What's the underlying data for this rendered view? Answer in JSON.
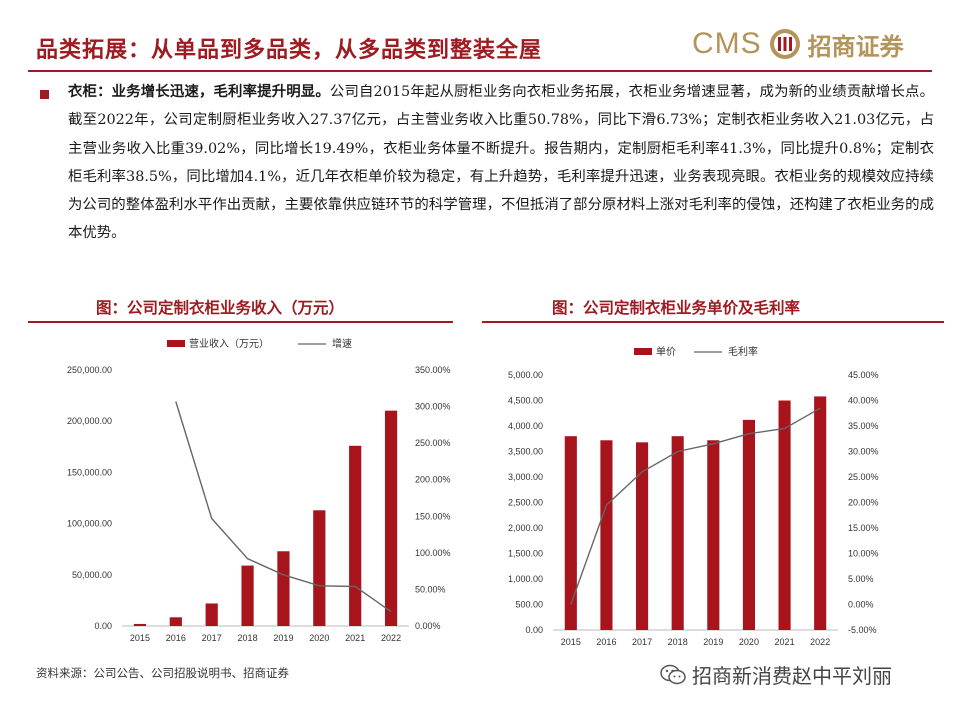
{
  "header": {
    "title": "品类拓展：从单品到多品类，从多品类到整装全屋",
    "logo_latin": "CMS",
    "logo_cn": "招商证券"
  },
  "body": {
    "lead": "衣柜：业务增长迅速，毛利率提升明显。",
    "text": "公司自2015年起从厨柜业务向衣柜业务拓展，衣柜业务增速显著，成为新的业绩贡献增长点。截至2022年，公司定制厨柜业务收入27.37亿元，占主营业务收入比重50.78%，同比下滑6.73%；定制衣柜业务收入21.03亿元，占主营业务收入比重39.02%，同比增长19.49%，衣柜业务体量不断提升。报告期内，定制厨柜毛利率41.3%，同比提升0.8%；定制衣柜毛利率38.5%，同比增加4.1%，近几年衣柜单价较为稳定，有上升趋势，毛利率提升迅速，业务表现亮眼。衣柜业务的规模效应持续为公司的整体盈利水平作出贡献，主要依靠供应链环节的科学管理，不但抵消了部分原材料上涨对毛利率的侵蚀，还构建了衣柜业务的成本优势。"
  },
  "colors": {
    "accent": "#9e1b22",
    "bar": "#a8141c",
    "line": "#666666",
    "logo": "#b3945a"
  },
  "chart_data": [
    {
      "type": "bar",
      "title": "图：公司定制衣柜业务收入（万元）",
      "categories": [
        "2015",
        "2016",
        "2017",
        "2018",
        "2019",
        "2020",
        "2021",
        "2022"
      ],
      "series": [
        {
          "name": "营业收入（万元）",
          "type": "bar",
          "axis": "left",
          "values": [
            2000,
            8500,
            22000,
            59000,
            73000,
            113000,
            176000,
            210300
          ]
        },
        {
          "name": "增速",
          "type": "line",
          "axis": "right",
          "values": [
            null,
            307,
            147,
            92,
            70,
            55,
            54,
            19.5
          ]
        }
      ],
      "y_left": {
        "min": 0,
        "max": 250000,
        "step": 50000,
        "ticks": [
          "0.00",
          "50,000.00",
          "100,000.00",
          "150,000.00",
          "200,000.00",
          "250,000.00"
        ]
      },
      "y_right": {
        "min": 0,
        "max": 350,
        "step": 50,
        "ticks": [
          "0.00%",
          "50.00%",
          "100.00%",
          "150.00%",
          "200.00%",
          "250.00%",
          "300.00%",
          "350.00%"
        ]
      },
      "legend": "top",
      "grid": false
    },
    {
      "type": "bar",
      "title": "图：公司定制衣柜业务单价及毛利率",
      "categories": [
        "2015",
        "2016",
        "2017",
        "2018",
        "2019",
        "2020",
        "2021",
        "2022"
      ],
      "series": [
        {
          "name": "单价",
          "type": "bar",
          "axis": "left",
          "values": [
            3800,
            3720,
            3680,
            3800,
            3720,
            4120,
            4500,
            4580
          ]
        },
        {
          "name": "毛利率",
          "type": "line",
          "axis": "right",
          "values": [
            0.0,
            19.5,
            26.0,
            30.0,
            31.5,
            33.5,
            34.5,
            38.5
          ]
        }
      ],
      "y_left": {
        "min": 0,
        "max": 5000,
        "step": 500,
        "ticks": [
          "0.00",
          "500.00",
          "1,000.00",
          "1,500.00",
          "2,000.00",
          "2,500.00",
          "3,000.00",
          "3,500.00",
          "4,000.00",
          "4,500.00",
          "5,000.00"
        ]
      },
      "y_right": {
        "min": -5,
        "max": 45,
        "step": 5,
        "ticks": [
          "-5.00%",
          "0.00%",
          "5.00%",
          "10.00%",
          "15.00%",
          "20.00%",
          "25.00%",
          "30.00%",
          "35.00%",
          "40.00%",
          "45.00%"
        ]
      },
      "legend": "top",
      "grid": false
    }
  ],
  "footer": {
    "source": "资料来源：公司公告、公司招股说明书、招商证券",
    "watermark": "招商新消费赵中平刘丽"
  }
}
